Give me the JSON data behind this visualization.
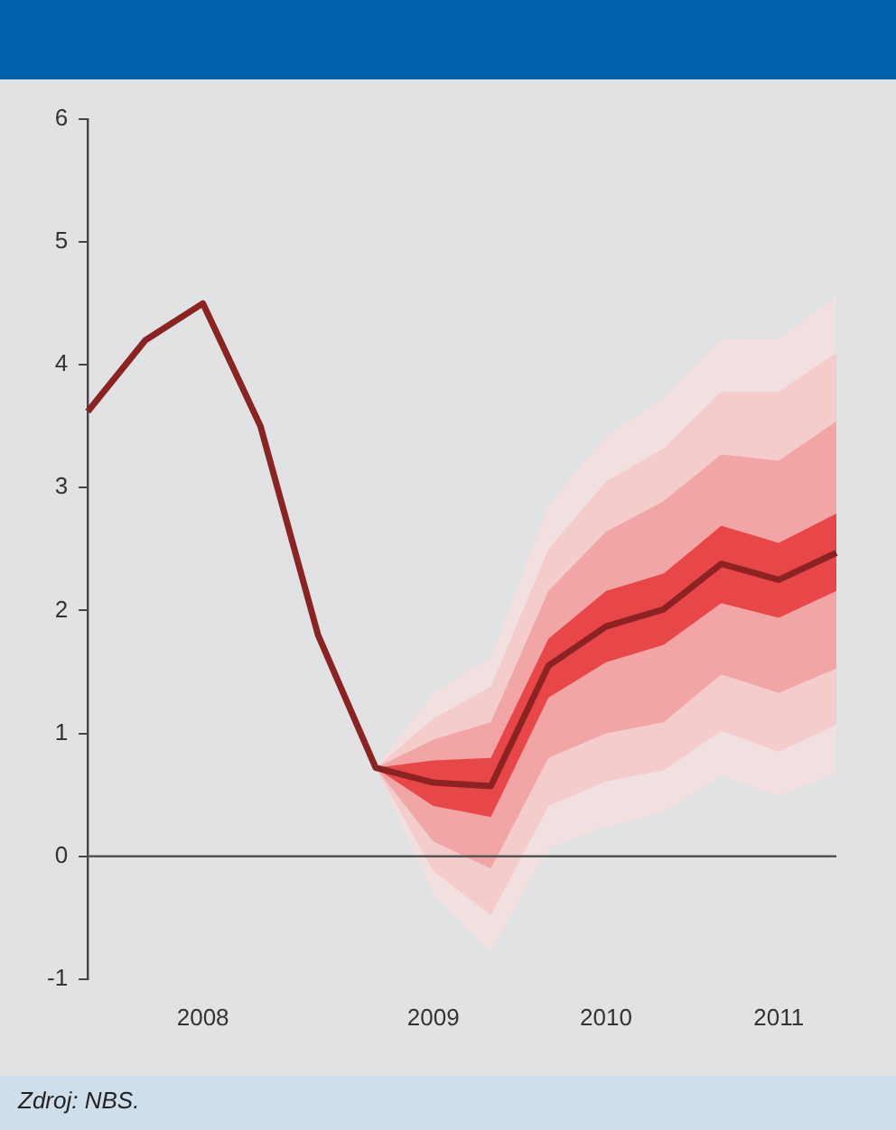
{
  "chart_data": {
    "type": "line",
    "categories": [
      null,
      null,
      "2008",
      null,
      null,
      null,
      "2009",
      null,
      null,
      "2010",
      null,
      null,
      "2011",
      null
    ],
    "series": [
      {
        "type": "area",
        "color": "#f2dfe0",
        "values": [
          null,
          null,
          null,
          null,
          null,
          null,
          null,
          null,
          null,
          null,
          null,
          null,
          null,
          null
        ],
        "lower": [
          null,
          null,
          null,
          null,
          null,
          0.72,
          -0.31,
          -0.78,
          0.07,
          0.24,
          0.36,
          0.65,
          0.49,
          0.68
        ],
        "upper": [
          null,
          null,
          null,
          null,
          null,
          0.72,
          1.33,
          1.62,
          2.86,
          3.42,
          3.73,
          4.21,
          4.21,
          4.56
        ]
      },
      {
        "type": "area",
        "color": "#f5cccc",
        "values": [
          null,
          null,
          null,
          null,
          null,
          null,
          null,
          null,
          null,
          null,
          null,
          null,
          null,
          null
        ],
        "lower": [
          null,
          null,
          null,
          null,
          null,
          0.72,
          -0.12,
          -0.48,
          0.41,
          0.61,
          0.7,
          1.02,
          0.85,
          1.07
        ],
        "upper": [
          null,
          null,
          null,
          null,
          null,
          0.72,
          1.12,
          1.38,
          2.5,
          3.05,
          3.32,
          3.78,
          3.78,
          4.1
        ]
      },
      {
        "type": "area",
        "color": "#f2a5a5",
        "values": [
          null,
          null,
          null,
          null,
          null,
          null,
          null,
          null,
          null,
          null,
          null,
          null,
          null,
          null
        ],
        "lower": [
          null,
          null,
          null,
          null,
          null,
          0.72,
          0.12,
          -0.1,
          0.8,
          1.0,
          1.09,
          1.48,
          1.33,
          1.53
        ],
        "upper": [
          null,
          null,
          null,
          null,
          null,
          0.72,
          0.95,
          1.09,
          2.16,
          2.64,
          2.89,
          3.27,
          3.22,
          3.54
        ]
      },
      {
        "type": "area",
        "color": "#e8474a",
        "values": [
          null,
          null,
          null,
          null,
          null,
          null,
          null,
          null,
          null,
          null,
          null,
          null,
          null,
          null
        ],
        "lower": [
          null,
          null,
          null,
          null,
          null,
          0.72,
          0.41,
          0.32,
          1.29,
          1.58,
          1.72,
          2.06,
          1.94,
          2.16
        ],
        "upper": [
          null,
          null,
          null,
          null,
          null,
          0.72,
          0.78,
          0.8,
          1.77,
          2.16,
          2.3,
          2.69,
          2.55,
          2.79
        ]
      },
      {
        "color": "#8b2323",
        "values": [
          3.62,
          4.2,
          4.5,
          3.5,
          1.8,
          0.72,
          0.6,
          0.57,
          1.55,
          1.87,
          2.01,
          2.38,
          2.25,
          2.47
        ]
      }
    ],
    "ylim": [
      -1,
      6
    ],
    "yticks": [
      -1,
      0,
      1,
      2,
      3,
      4,
      5,
      6
    ],
    "ref_lines": [
      {
        "axis": "y",
        "value": 0,
        "color": "#555555"
      }
    ],
    "grid": false,
    "legend": false,
    "marker": "none",
    "line_style": "solid",
    "annotations": [
      "Zdroj: NBS."
    ]
  }
}
